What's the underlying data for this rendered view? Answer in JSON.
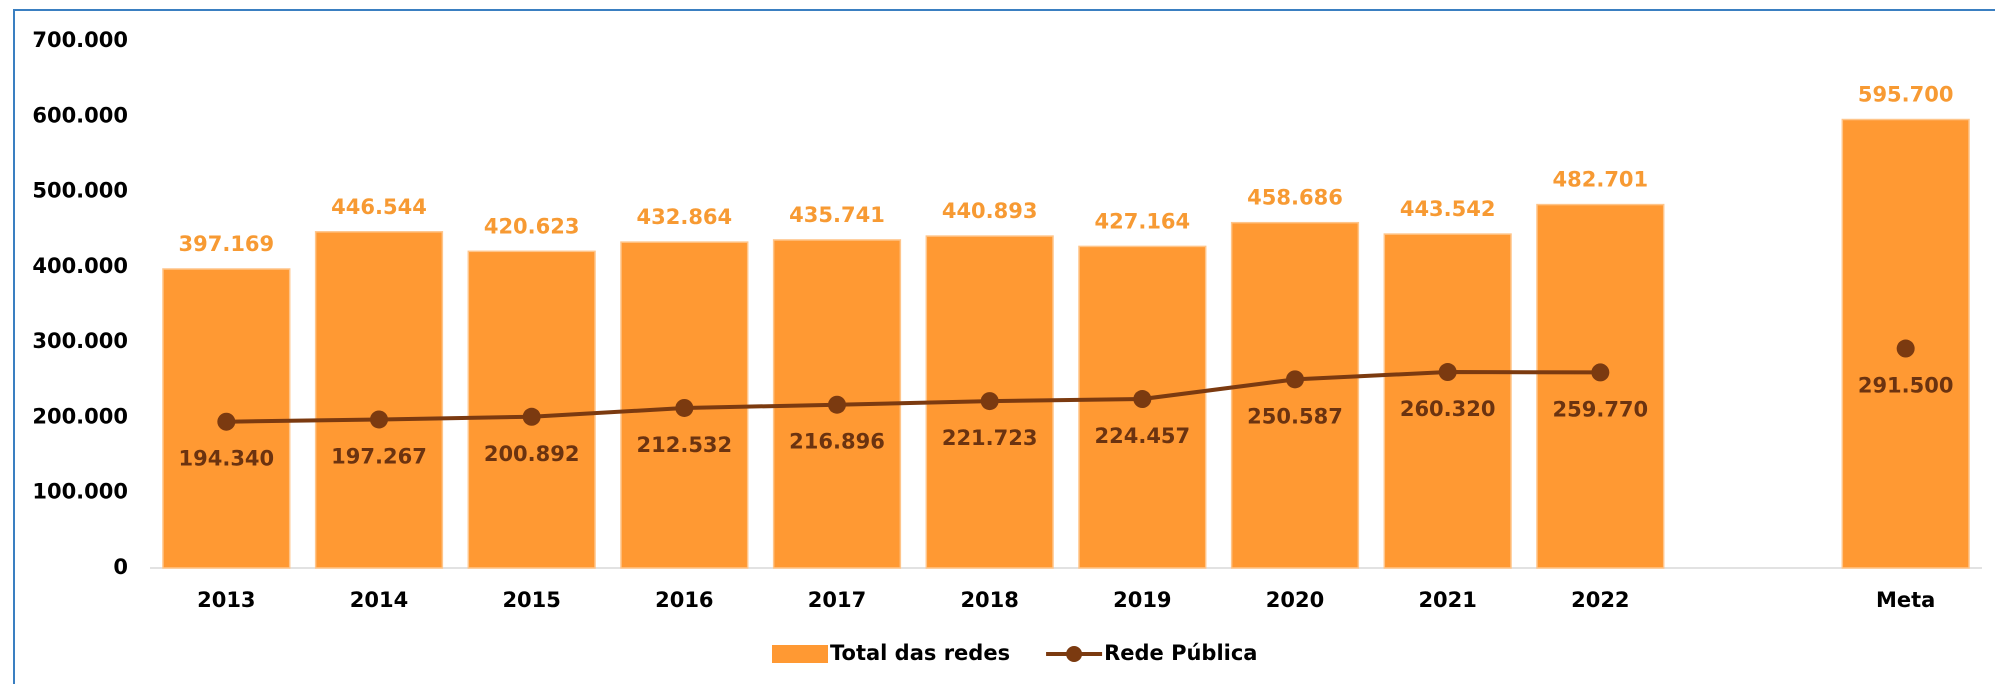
{
  "chart_data": {
    "type": "bar",
    "categories": [
      "2013",
      "2014",
      "2015",
      "2016",
      "2017",
      "2018",
      "2019",
      "2020",
      "2021",
      "2022",
      null,
      "Meta"
    ],
    "series": [
      {
        "name": "Total das redes",
        "type": "bar",
        "color": "#ff9933",
        "values": [
          397169,
          446544,
          420623,
          432864,
          435741,
          440893,
          427164,
          458686,
          443542,
          482701,
          null,
          595700
        ],
        "value_labels": [
          "397.169",
          "446.544",
          "420.623",
          "432.864",
          "435.741",
          "440.893",
          "427.164",
          "458.686",
          "443.542",
          "482.701",
          null,
          "595.700"
        ]
      },
      {
        "name": "Rede Pública",
        "type": "line",
        "color": "#7b3a10",
        "values": [
          194340,
          197267,
          200892,
          212532,
          216896,
          221723,
          224457,
          250587,
          260320,
          259770,
          null,
          291500
        ],
        "value_labels": [
          "194.340",
          "197.267",
          "200.892",
          "212.532",
          "216.896",
          "221.723",
          "224.457",
          "250.587",
          "260.320",
          "259.770",
          null,
          "291.500"
        ]
      }
    ],
    "ylim": [
      0,
      700000
    ],
    "yticks": [
      0,
      {
        "value": 100000,
        "label": "100.000"
      },
      {
        "value": 200000,
        "label": "200.000"
      },
      {
        "value": 300000,
        "label": "300.000"
      },
      {
        "value": 400000,
        "label": "400.000"
      },
      {
        "value": 500000,
        "label": "500.000"
      },
      {
        "value": 600000,
        "label": "600.000"
      },
      {
        "value": 700000,
        "label": "700.000"
      }
    ],
    "legend": "bottom"
  }
}
